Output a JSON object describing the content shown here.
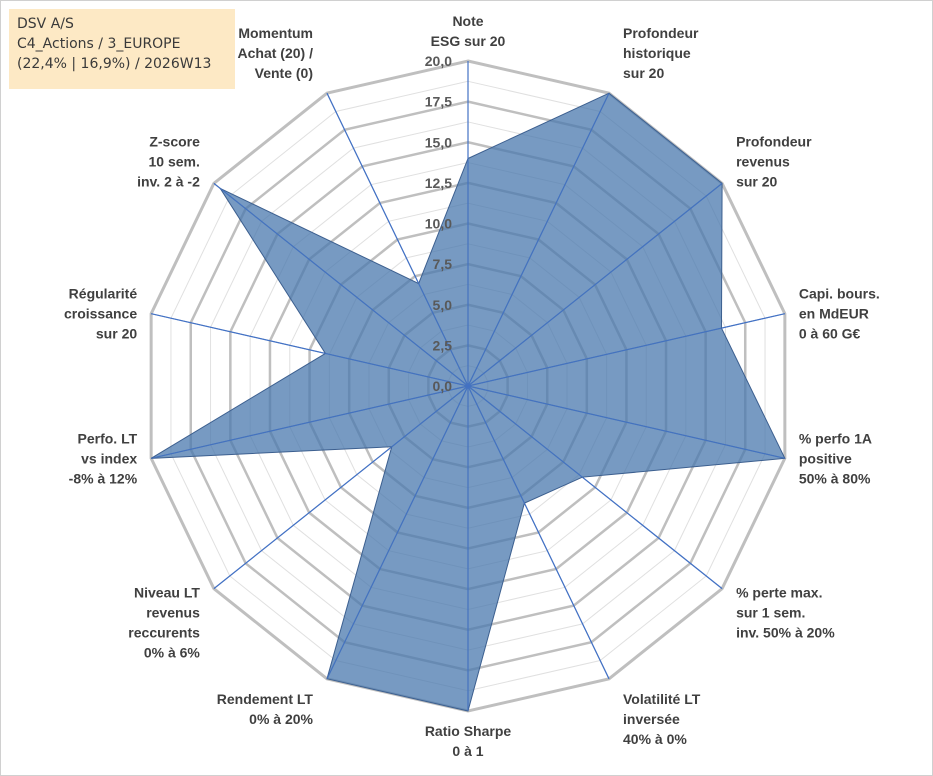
{
  "title": {
    "line1": "DSV A/S",
    "line2": "C4_Actions / 3_EUROPE",
    "line3": "(22,4% | 16,9%) / 2026W13"
  },
  "chart_data": {
    "type": "radar",
    "rmax": 20,
    "ticks": [
      "0,0",
      "2,5",
      "5,0",
      "7,5",
      "10,0",
      "12,5",
      "15,0",
      "17,5",
      "20,0"
    ],
    "axes": [
      {
        "label": [
          "Note",
          "ESG sur 20"
        ],
        "value": 14.0
      },
      {
        "label": [
          "Profondeur",
          "historique",
          "sur 20"
        ],
        "value": 20.0
      },
      {
        "label": [
          "Profondeur",
          "revenus",
          "sur 20"
        ],
        "value": 20.0
      },
      {
        "label": [
          "Capi. bours.",
          "en MdEUR",
          "0 à 60 G€"
        ],
        "value": 16.0
      },
      {
        "label": [
          "% perfo 1A",
          "positive",
          "50% à 80%"
        ],
        "value": 20.0
      },
      {
        "label": [
          "% perte max.",
          "sur 1 sem.",
          "inv. 50% à 20%"
        ],
        "value": 9.0
      },
      {
        "label": [
          "Volatilité LT",
          "inversée",
          "40% à 0%"
        ],
        "value": 8.0
      },
      {
        "label": [
          "Ratio Sharpe",
          "0 à 1"
        ],
        "value": 20.0
      },
      {
        "label": [
          "Rendement LT",
          "0% à 20%"
        ],
        "value": 20.0
      },
      {
        "label": [
          "Niveau LT",
          "revenus",
          "reccurents",
          "0% à 6%"
        ],
        "value": 6.0
      },
      {
        "label": [
          "Perfo. LT",
          "vs index",
          "-8% à 12%"
        ],
        "value": 20.0
      },
      {
        "label": [
          "Régularité",
          "croissance",
          "sur 20"
        ],
        "value": 9.0
      },
      {
        "label": [
          "Z-score",
          "10 sem.",
          "inv. 2 à -2"
        ],
        "value": 19.5
      },
      {
        "label": [
          "Momentum",
          "Achat (20) /",
          "Vente (0)"
        ],
        "value": 7.0
      }
    ],
    "fill_color": "#4a78ae",
    "fill_opacity": 0.75,
    "series_line_color": "#3c5f8f",
    "axis_line_color": "#4472c4",
    "grid_major_color": "#bfbfbf",
    "grid_minor_color": "#e0e0e0"
  }
}
